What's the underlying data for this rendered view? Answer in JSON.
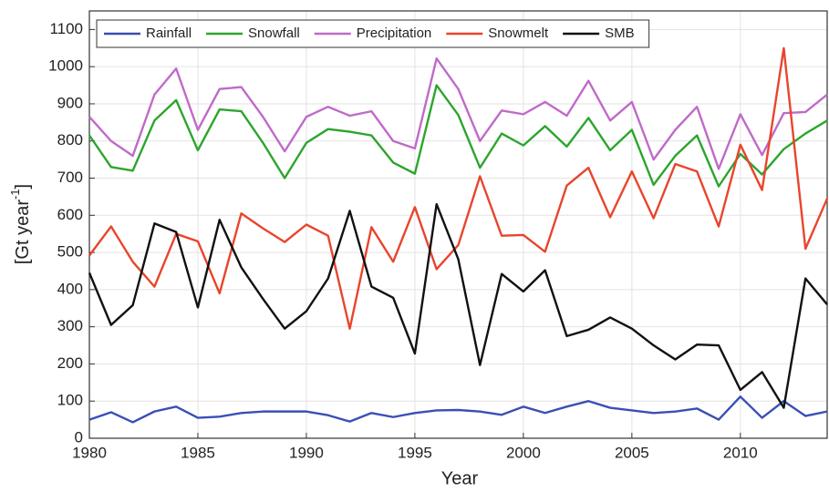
{
  "chart_data": {
    "type": "line",
    "xlabel": "Year",
    "ylabel": [
      "[Gt year",
      "-1",
      "]"
    ],
    "x": [
      1980,
      1981,
      1982,
      1983,
      1984,
      1985,
      1986,
      1987,
      1988,
      1989,
      1990,
      1991,
      1992,
      1993,
      1994,
      1995,
      1996,
      1997,
      1998,
      1999,
      2000,
      2001,
      2002,
      2003,
      2004,
      2005,
      2006,
      2007,
      2008,
      2009,
      2010,
      2011,
      2012,
      2013,
      2014
    ],
    "series": [
      {
        "name": "Rainfall",
        "color": "#3a4fb5",
        "values": [
          50,
          70,
          43,
          72,
          85,
          55,
          58,
          68,
          72,
          72,
          72,
          62,
          45,
          68,
          57,
          68,
          75,
          76,
          72,
          63,
          85,
          68,
          85,
          100,
          82,
          75,
          68,
          72,
          80,
          50,
          112,
          55,
          100,
          60,
          72
        ]
      },
      {
        "name": "Snowfall",
        "color": "#2ca52c",
        "values": [
          815,
          730,
          720,
          855,
          910,
          775,
          885,
          880,
          795,
          700,
          795,
          832,
          825,
          815,
          742,
          712,
          950,
          870,
          728,
          820,
          788,
          840,
          785,
          862,
          775,
          830,
          682,
          760,
          815,
          678,
          765,
          710,
          778,
          820,
          855
        ]
      },
      {
        "name": "Precipitation",
        "color": "#c06ac8",
        "values": [
          865,
          800,
          760,
          925,
          995,
          830,
          940,
          945,
          865,
          772,
          865,
          892,
          868,
          880,
          800,
          780,
          1022,
          940,
          800,
          882,
          872,
          905,
          868,
          962,
          855,
          905,
          750,
          830,
          892,
          725,
          872,
          762,
          875,
          878,
          925
        ]
      },
      {
        "name": "Snowmelt",
        "color": "#e8452c",
        "values": [
          492,
          570,
          475,
          408,
          550,
          530,
          390,
          605,
          565,
          528,
          575,
          545,
          295,
          568,
          475,
          622,
          455,
          520,
          705,
          545,
          547,
          502,
          680,
          728,
          595,
          718,
          592,
          738,
          718,
          570,
          790,
          668,
          1050,
          510,
          645
        ]
      },
      {
        "name": "SMB",
        "color": "#111111",
        "values": [
          445,
          305,
          358,
          578,
          555,
          352,
          588,
          460,
          375,
          295,
          342,
          430,
          612,
          408,
          378,
          228,
          630,
          482,
          197,
          442,
          395,
          452,
          275,
          292,
          325,
          295,
          250,
          212,
          252,
          250,
          130,
          178,
          82,
          430,
          360
        ]
      }
    ],
    "xlim": [
      1980,
      2014
    ],
    "xticks": [
      1980,
      1985,
      1990,
      1995,
      2000,
      2005,
      2010
    ],
    "ylim": [
      0,
      1150
    ],
    "yticks": [
      0,
      100,
      200,
      300,
      400,
      500,
      600,
      700,
      800,
      900,
      1000,
      1100
    ],
    "grid": true,
    "legend": "top-left"
  }
}
